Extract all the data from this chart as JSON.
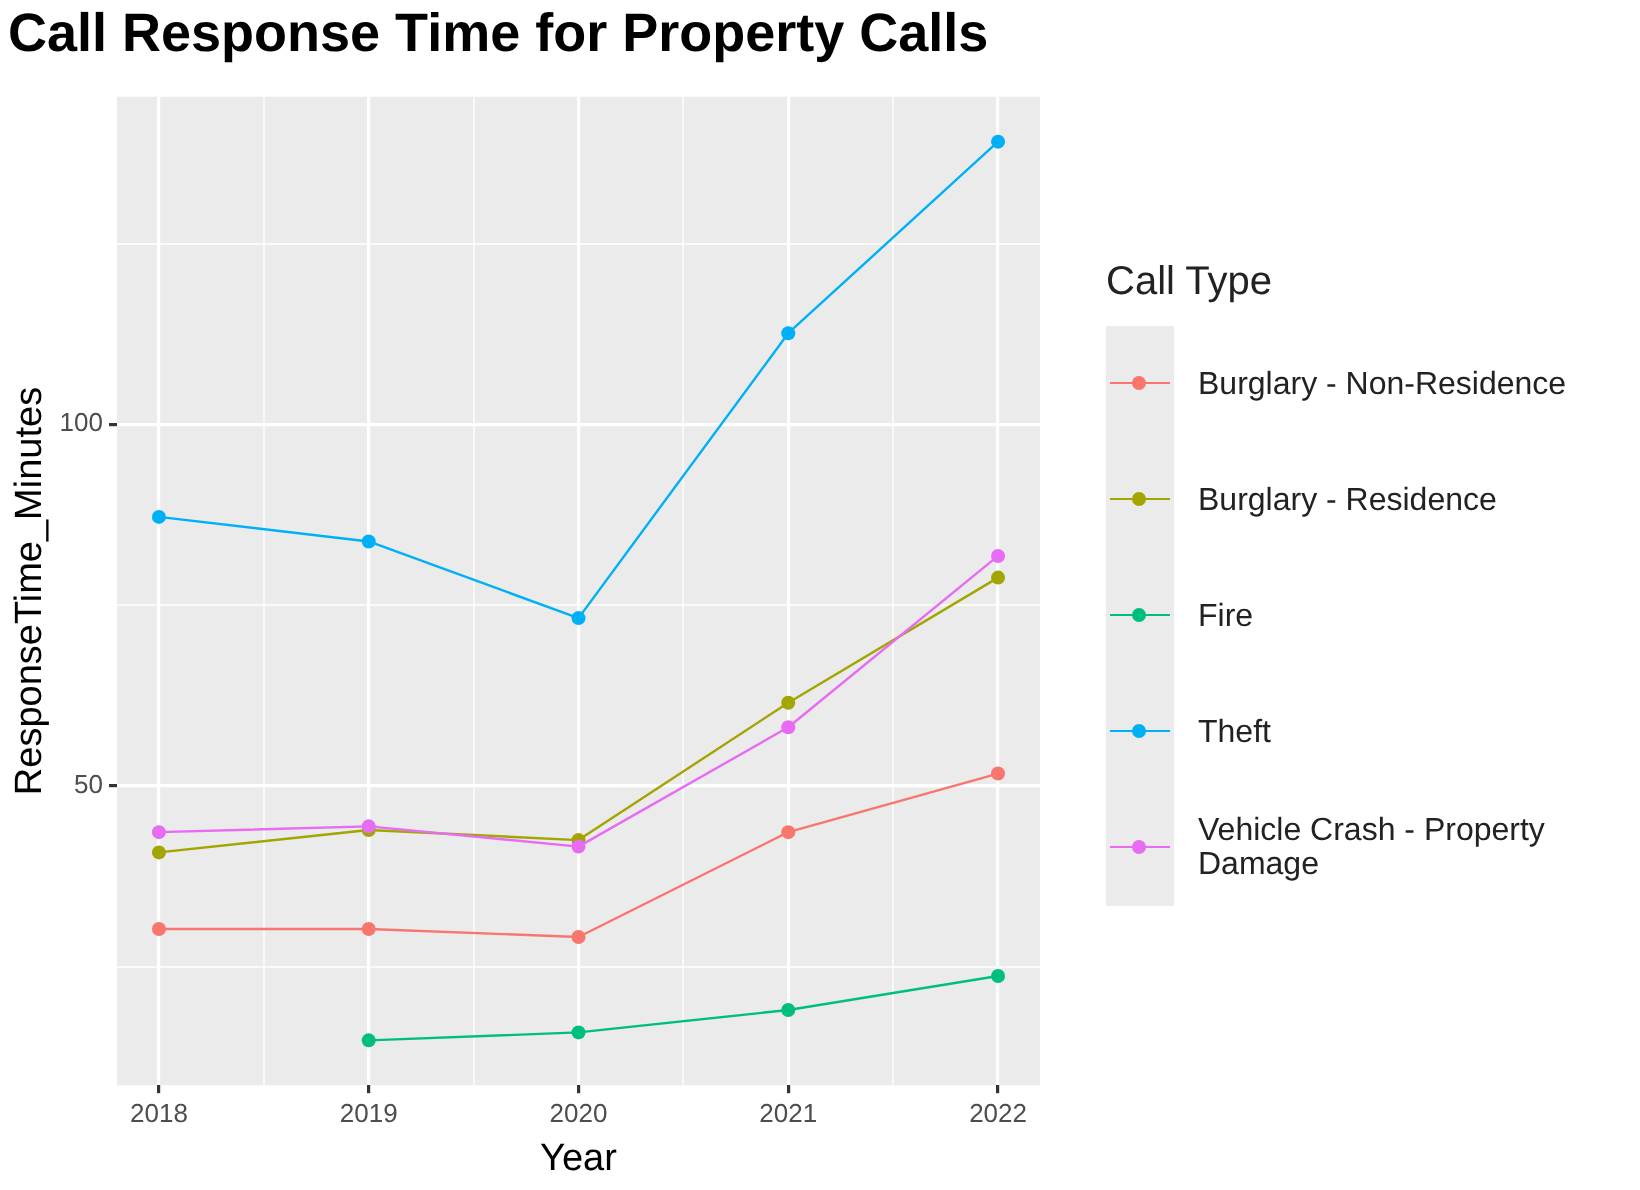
{
  "chart_data": {
    "type": "line",
    "title": "Call Response Time for Property Calls",
    "xlabel": "Year",
    "ylabel": "ResponseTime_Minutes",
    "legend_title": "Call Type",
    "x": [
      2018,
      2019,
      2020,
      2021,
      2022
    ],
    "xlim": [
      2017.8,
      2022.2
    ],
    "xticks": [
      2018,
      {
        "value": 2018.5,
        "label": null
      },
      2019,
      {
        "value": 2019.5,
        "label": null
      },
      2020,
      {
        "value": 2020.5,
        "label": null
      },
      2021,
      {
        "value": 2021.5,
        "label": null
      },
      2022
    ],
    "ylim": [
      8.6,
      145.3
    ],
    "yticks": [
      {
        "value": 25,
        "label": null
      },
      50,
      {
        "value": 75,
        "label": null
      },
      100,
      {
        "value": 125,
        "label": null
      }
    ],
    "series": [
      {
        "name": "Burglary - Non-Residence",
        "color": "#f8766d",
        "values": [
          30.2,
          30.2,
          29.1,
          43.6,
          51.7
        ]
      },
      {
        "name": "Burglary - Residence",
        "color": "#a3a500",
        "values": [
          40.8,
          43.9,
          42.5,
          61.5,
          78.8
        ]
      },
      {
        "name": "Fire",
        "color": "#00bf7d",
        "values": [
          null,
          14.8,
          15.9,
          19.0,
          23.7
        ]
      },
      {
        "name": "Theft",
        "color": "#00b0f6",
        "values": [
          87.2,
          83.8,
          73.2,
          112.6,
          139.1
        ]
      },
      {
        "name": "Vehicle Crash - Property Damage",
        "color": "#e76bf3",
        "values": [
          43.6,
          44.4,
          41.6,
          58.1,
          81.8
        ]
      }
    ],
    "grid": true,
    "legend": "right",
    "marker": "circle",
    "line_style": "solid"
  }
}
